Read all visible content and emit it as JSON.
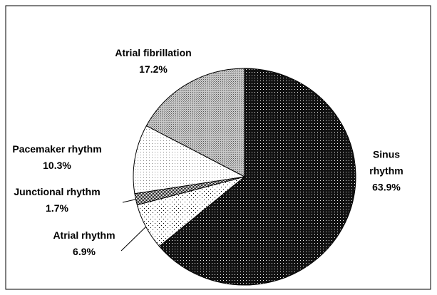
{
  "chart_data": {
    "type": "pie",
    "categories": [
      "Sinus rhythm",
      "Atrial rhythm",
      "Junctional rhythm",
      "Pacemaker rhythm",
      "Atrial fibrillation"
    ],
    "values": [
      63.9,
      6.9,
      1.7,
      10.3,
      17.2
    ],
    "value_labels": [
      "63.9%",
      "6.9%",
      "1.7%",
      "10.3%",
      "17.2%"
    ],
    "colors": [
      "#111111",
      "#ffffff",
      "#2a2a2a",
      "#f6f6f6",
      "#a8a8a8"
    ]
  }
}
